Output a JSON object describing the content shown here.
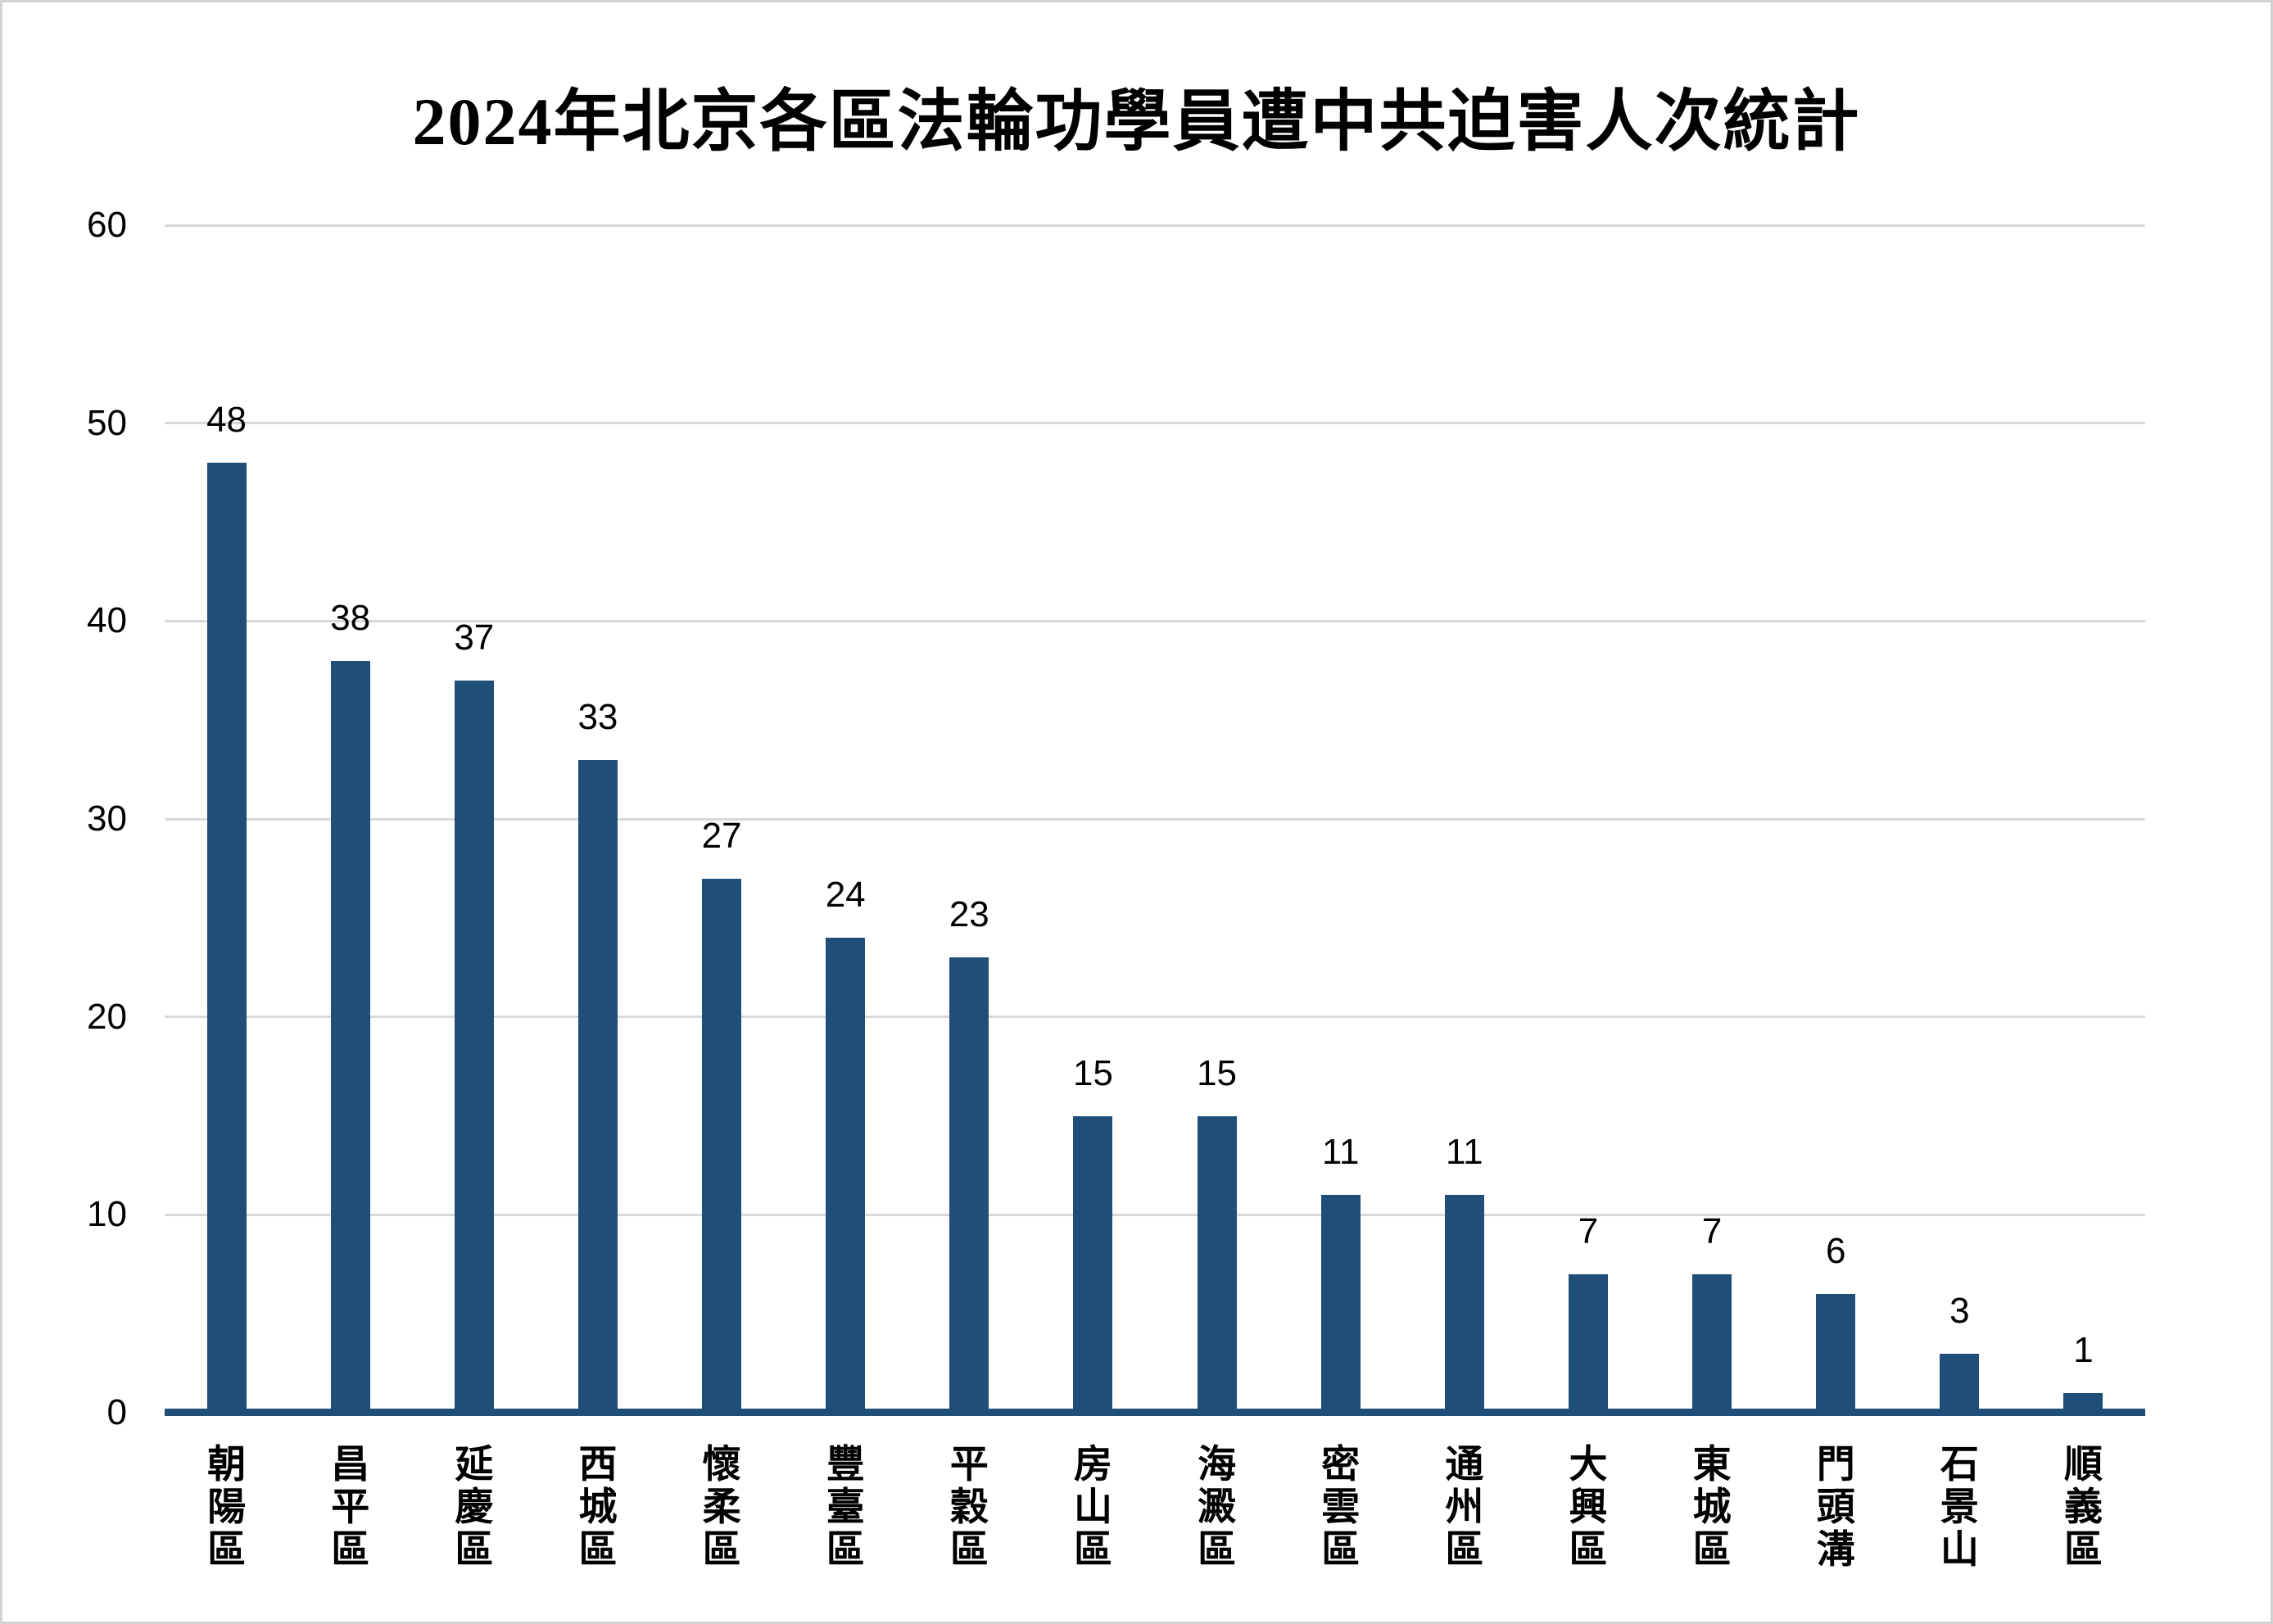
{
  "chart_data": {
    "type": "bar",
    "title": "2024年北京各區法輪功學員遭中共迫害人次統計",
    "categories": [
      "朝陽區",
      "昌平區",
      "延慶區",
      "西城區",
      "懷柔區",
      "豐臺區",
      "平穀區",
      "房山區",
      "海澱區",
      "密雲區",
      "通州區",
      "大興區",
      "東城區",
      "門頭溝",
      "石景山",
      "順義區"
    ],
    "values": [
      48,
      38,
      37,
      33,
      27,
      24,
      23,
      15,
      15,
      11,
      11,
      7,
      7,
      6,
      3,
      1
    ],
    "value_labels_shown": true,
    "xlabel": "",
    "ylabel": "",
    "ylim": [
      0,
      60
    ],
    "yticks": [
      0,
      10,
      20,
      30,
      40,
      50,
      60
    ],
    "grid": "horizontal",
    "legend": "none",
    "x_label_orientation": "vertical-stacked",
    "colors": {
      "bar": "#1f4e79",
      "axis_line": "#1f4e79",
      "gridline": "#d9d9d9",
      "text": "#000000",
      "background": "#ffffff",
      "canvas_border": "#d2d2d2"
    }
  }
}
